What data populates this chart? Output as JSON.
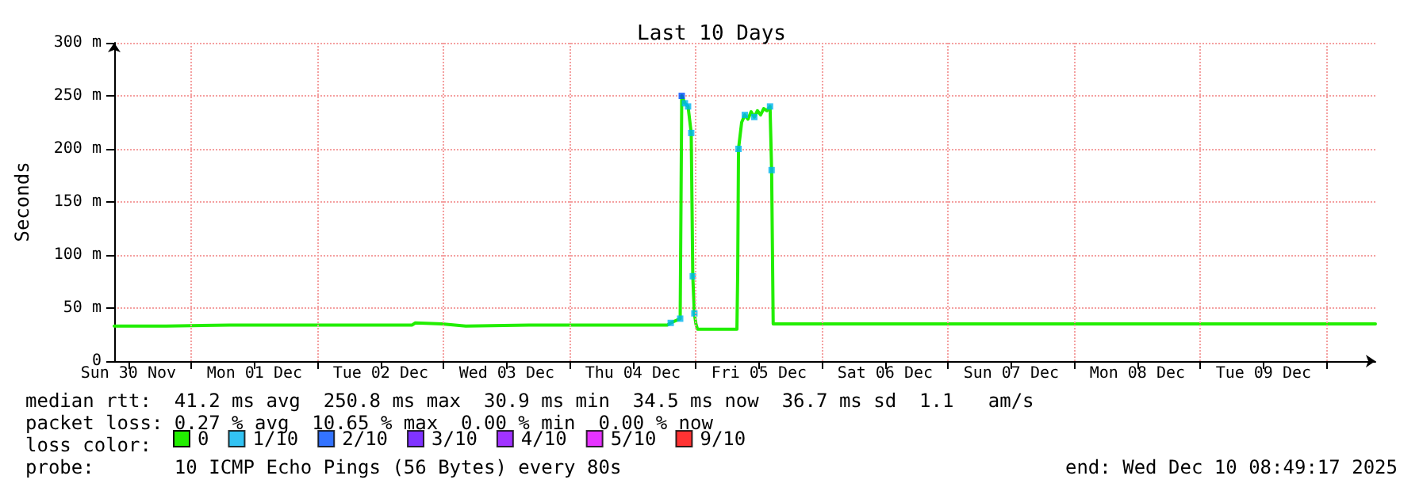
{
  "chart_data": {
    "type": "line",
    "title": "Last 10 Days",
    "ylabel": "Seconds",
    "legend_title": "loss color:",
    "legend": "bottom left",
    "grid": true,
    "marker": "none",
    "line_style": "solid",
    "xlim": [
      "2025-11-30T09:18",
      "2025-12-10T09:18"
    ],
    "xticks": [
      {
        "value": "2025-11-30T12:00",
        "label": "Sun 30 Nov"
      },
      {
        "value": "2025-12-01T00:00",
        "label": null
      },
      {
        "value": "2025-12-01T12:00",
        "label": "Mon 01 Dec"
      },
      {
        "value": "2025-12-02T00:00",
        "label": null
      },
      {
        "value": "2025-12-02T12:00",
        "label": "Tue 02 Dec"
      },
      {
        "value": "2025-12-03T00:00",
        "label": null
      },
      {
        "value": "2025-12-03T12:00",
        "label": "Wed 03 Dec"
      },
      {
        "value": "2025-12-04T00:00",
        "label": null
      },
      {
        "value": "2025-12-04T12:00",
        "label": "Thu 04 Dec"
      },
      {
        "value": "2025-12-05T00:00",
        "label": null
      },
      {
        "value": "2025-12-05T12:00",
        "label": "Fri 05 Dec"
      },
      {
        "value": "2025-12-06T00:00",
        "label": null
      },
      {
        "value": "2025-12-06T12:00",
        "label": "Sat 06 Dec"
      },
      {
        "value": "2025-12-07T00:00",
        "label": null
      },
      {
        "value": "2025-12-07T12:00",
        "label": "Sun 07 Dec"
      },
      {
        "value": "2025-12-08T00:00",
        "label": null
      },
      {
        "value": "2025-12-08T12:00",
        "label": "Mon 08 Dec"
      },
      {
        "value": "2025-12-09T00:00",
        "label": null
      },
      {
        "value": "2025-12-09T12:00",
        "label": "Tue 09 Dec"
      },
      {
        "value": "2025-12-10T00:00",
        "label": null
      }
    ],
    "ylim": [
      0,
      300
    ],
    "yticks": [
      0,
      {
        "value": 50,
        "label": "50 m"
      },
      {
        "value": 100,
        "label": "100 m"
      },
      {
        "value": 150,
        "label": "150 m"
      },
      {
        "value": 200,
        "label": "200 m"
      },
      {
        "value": 250,
        "label": "250 m"
      },
      {
        "value": 300,
        "label": "300 m"
      }
    ],
    "series": [
      {
        "name": "0",
        "color": "#22ee00",
        "x": [
          "2025-11-30T09:18",
          "2025-11-30T19:12",
          "2025-12-01T07:12",
          "2025-12-02T18:00",
          "2025-12-02T18:36",
          "2025-12-02T23:42",
          "2025-12-03T04:12",
          "2025-12-03T16:12",
          "2025-12-04T18:36",
          "2025-12-04T19:12",
          "2025-12-04T21:00",
          "2025-12-04T21:18",
          "2025-12-04T21:54",
          "2025-12-04T22:30",
          "2025-12-04T23:06",
          "2025-12-04T23:24",
          "2025-12-04T23:42",
          "2025-12-05T00:00",
          "2025-12-05T00:18",
          "2025-12-05T07:48",
          "2025-12-05T07:57",
          "2025-12-05T08:06",
          "2025-12-05T08:42",
          "2025-12-05T09:18",
          "2025-12-05T09:54",
          "2025-12-05T10:30",
          "2025-12-05T11:06",
          "2025-12-05T11:42",
          "2025-12-05T12:18",
          "2025-12-05T12:54",
          "2025-12-05T13:30",
          "2025-12-05T14:06",
          "2025-12-05T14:24",
          "2025-12-05T14:42",
          "2025-12-10T09:18"
        ],
        "values": [
          33,
          33,
          34,
          34,
          36,
          35,
          33,
          34,
          34,
          36,
          40,
          250,
          243,
          240,
          215,
          80,
          45,
          35,
          30,
          30,
          85,
          200,
          225,
          232,
          228,
          235,
          230,
          236,
          232,
          238,
          236,
          240,
          180,
          35,
          35
        ]
      },
      {
        "name": "1/10",
        "type": "scatter",
        "marker": "square",
        "color": "#00b4f0",
        "x": [
          "2025-12-04T19:12",
          "2025-12-04T21:00",
          "2025-12-04T21:54",
          "2025-12-04T22:30",
          "2025-12-04T23:06",
          "2025-12-04T23:24",
          "2025-12-04T23:42",
          "2025-12-05T08:06",
          "2025-12-05T09:18",
          "2025-12-05T11:06",
          "2025-12-05T14:06",
          "2025-12-05T14:24"
        ],
        "values": [
          36,
          40,
          243,
          240,
          215,
          80,
          45,
          200,
          232,
          230,
          240,
          180
        ]
      },
      {
        "name": "2/10",
        "type": "scatter",
        "marker": "square",
        "color": "#0050ff",
        "x": [
          "2025-12-04T21:18"
        ],
        "values": [
          250
        ]
      },
      {
        "name": "3/10",
        "type": "scatter",
        "marker": "square",
        "color": "#6000ff"
      },
      {
        "name": "4/10",
        "type": "scatter",
        "marker": "square",
        "color": "#8a00ff"
      },
      {
        "name": "5/10",
        "type": "scatter",
        "marker": "square",
        "color": "#e000ff"
      },
      {
        "name": "9/10",
        "type": "scatter",
        "marker": "square",
        "color": "#ff0000"
      }
    ],
    "annotations": [
      "median rtt:  41.2 ms avg  250.8 ms max  30.9 ms min  34.5 ms now  36.7 ms sd  1.1   am/s",
      "packet loss: 0.27 % avg  10.65 % max  0.00 % min  0.00 % now",
      "probe:       10 ICMP Echo Pings (56 Bytes) every 80s",
      "end: Wed Dec 10 08:49:17 2025"
    ]
  }
}
